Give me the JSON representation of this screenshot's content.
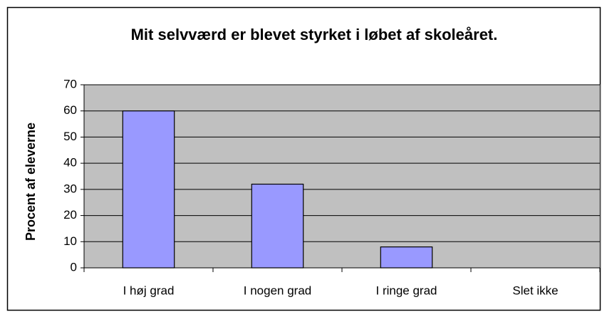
{
  "chart_data": {
    "type": "bar",
    "title": "Mit selvværd er blevet styrket i løbet af skoleåret.",
    "y_label": "Procent af eleverne",
    "categories": [
      "I høj grad",
      "I nogen grad",
      "I ringe grad",
      "Slet ikke"
    ],
    "values": [
      60,
      32,
      8,
      0
    ],
    "color": "#9999ff",
    "plot_background": "#c0c0c0",
    "ylim": [
      0,
      70
    ],
    "yticks": [
      0,
      10,
      20,
      30,
      40,
      50,
      60,
      70
    ],
    "grid": true
  }
}
